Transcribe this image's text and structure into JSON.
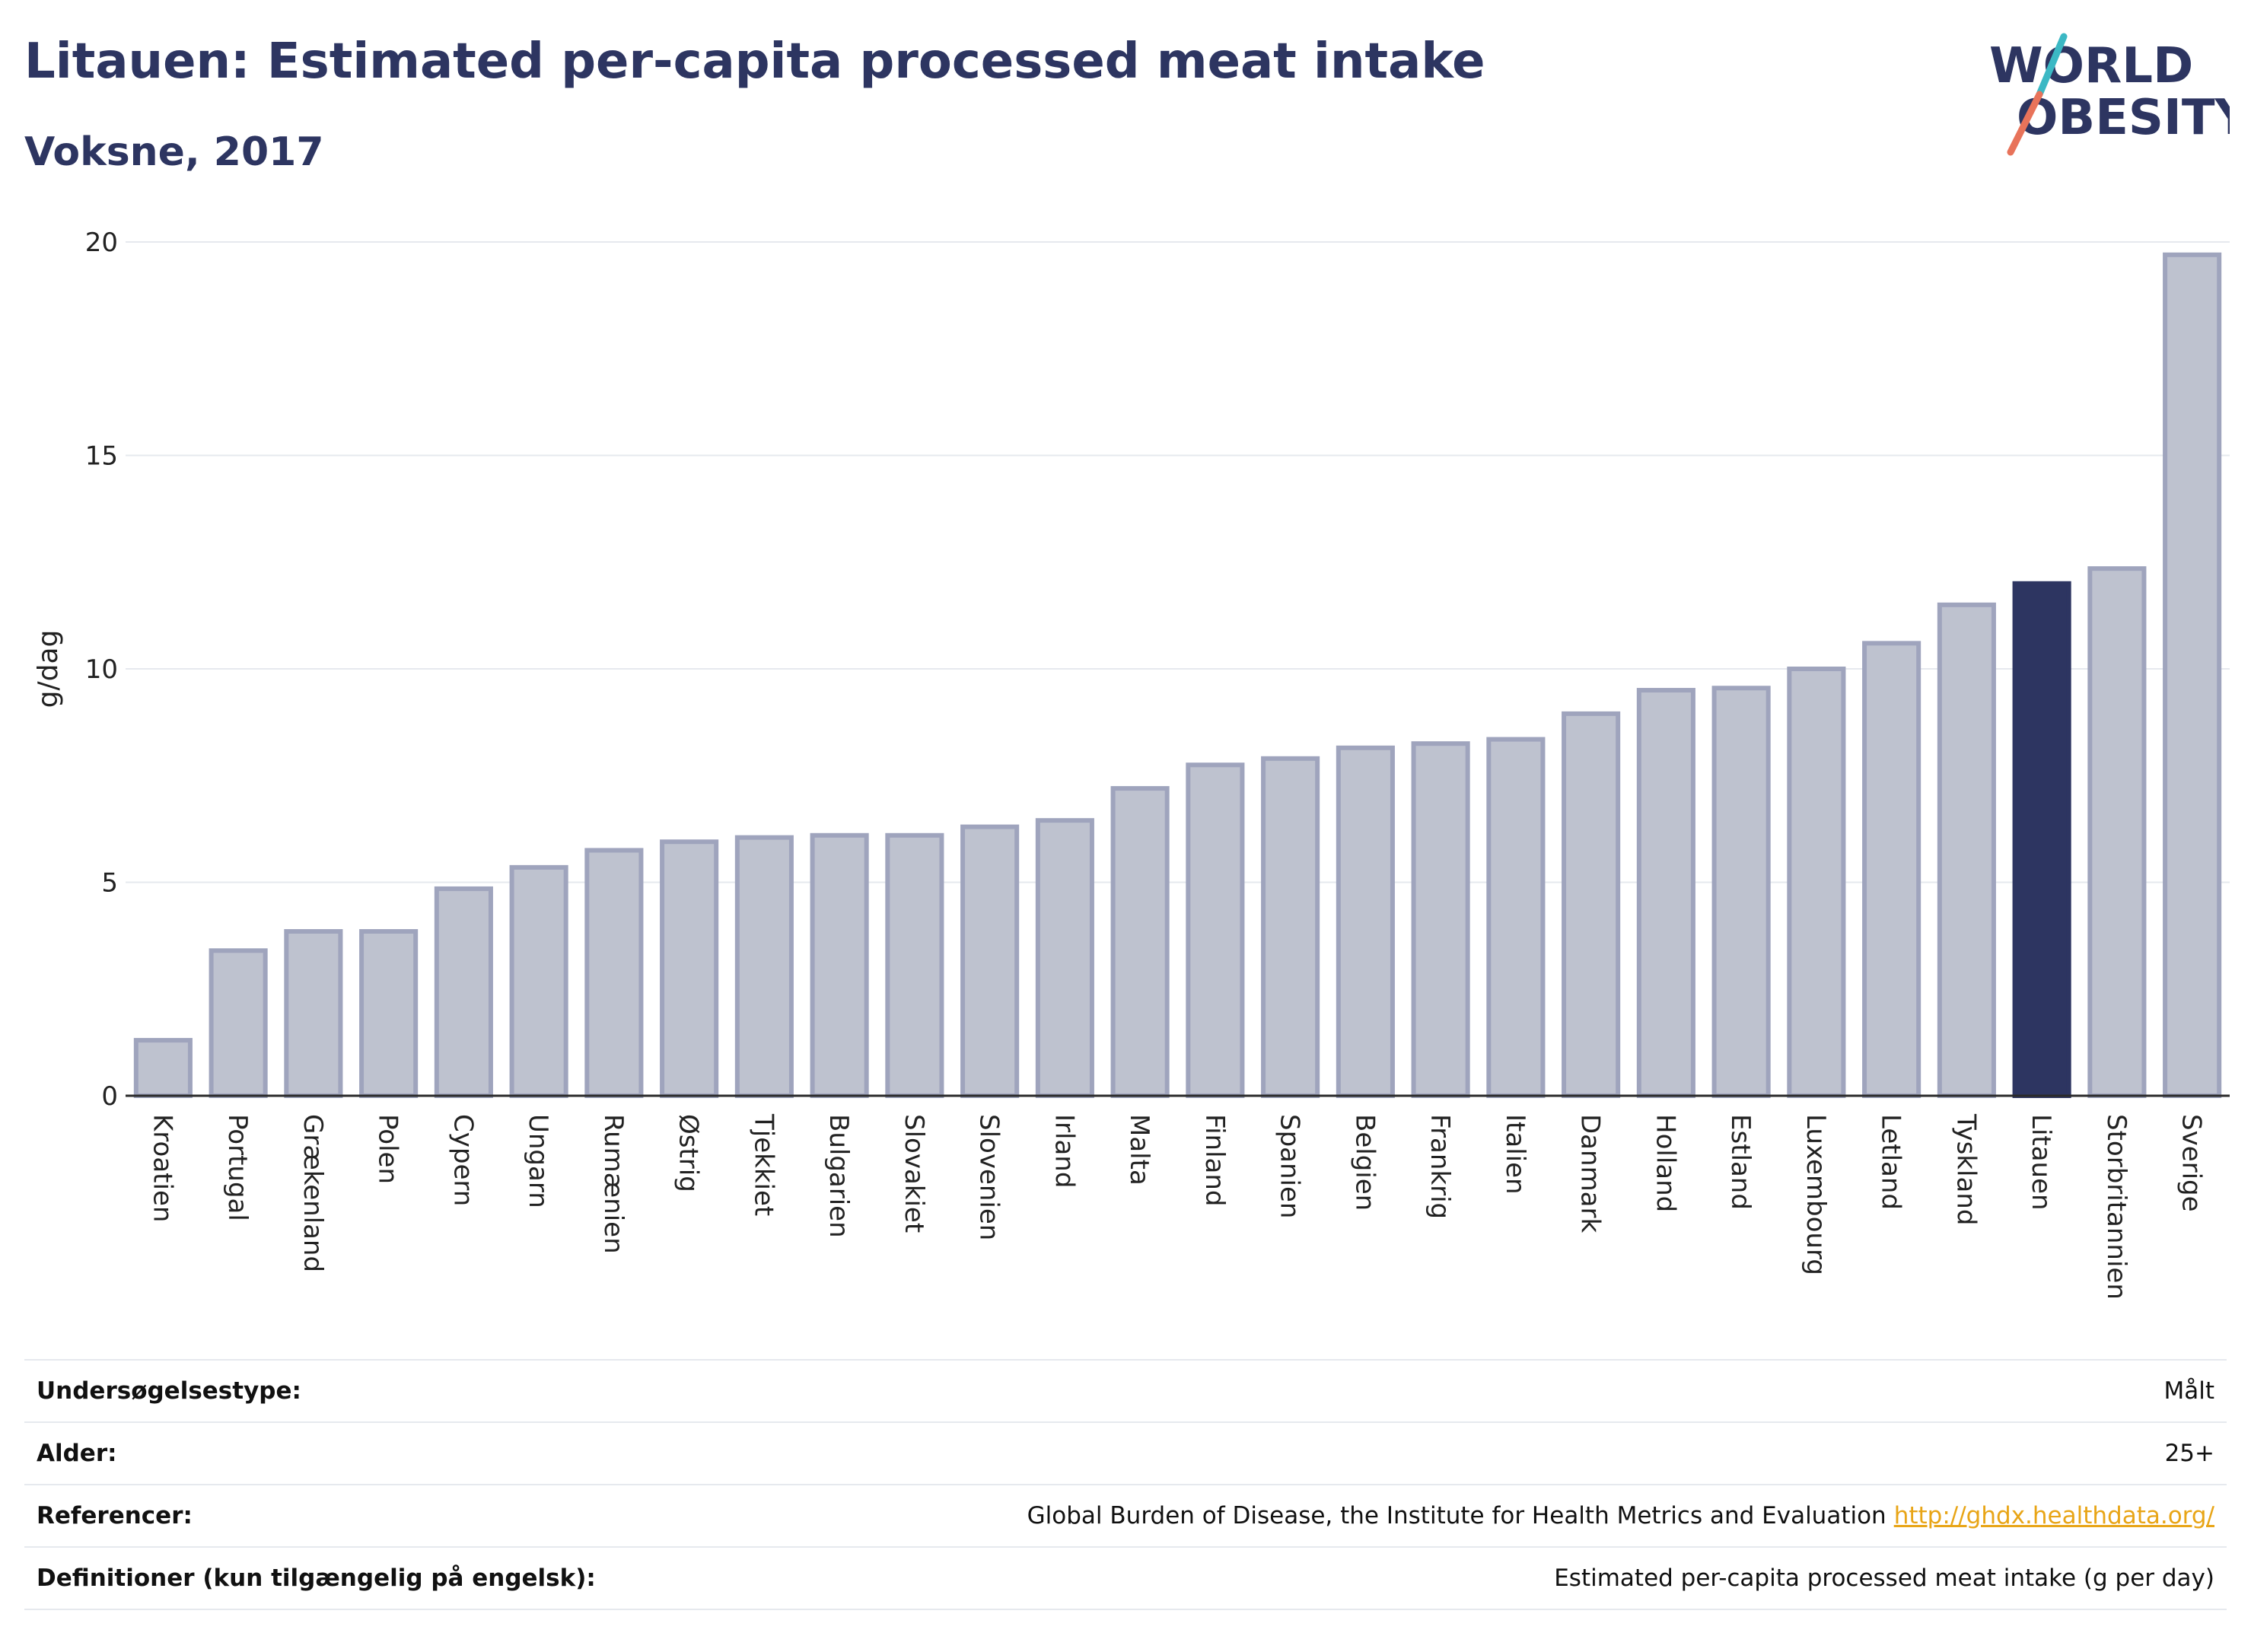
{
  "header": {
    "title": "Litauen: Estimated per-capita processed meat intake",
    "subtitle": "Voksne, 2017"
  },
  "logo": {
    "line1": "WORLD",
    "line2": "OBESITY",
    "colors": {
      "text": "#2d3561",
      "slash_top": "#3bb8c4",
      "slash_bottom": "#e8735a"
    }
  },
  "chart_data": {
    "type": "bar",
    "ylabel": "g/dag",
    "xlabel": "",
    "ylim": [
      0,
      20
    ],
    "yticks": [
      0,
      5,
      10,
      15,
      20
    ],
    "grid": true,
    "highlight": "Litauen",
    "colors": {
      "default_fill": "#bec2cf",
      "default_stroke": "#9fa4bd",
      "highlight_fill": "#2d3561"
    },
    "categories": [
      "Kroatien",
      "Portugal",
      "Grækenland",
      "Polen",
      "Cypern",
      "Ungarn",
      "Rumænien",
      "Østrig",
      "Tjekkiet",
      "Bulgarien",
      "Slovakiet",
      "Slovenien",
      "Irland",
      "Malta",
      "Finland",
      "Spanien",
      "Belgien",
      "Frankrig",
      "Italien",
      "Danmark",
      "Holland",
      "Estland",
      "Luxembourg",
      "Letland",
      "Tyskland",
      "Litauen",
      "Storbritannien",
      "Sverige"
    ],
    "values": [
      1.3,
      3.4,
      3.85,
      3.85,
      4.85,
      5.35,
      5.75,
      5.95,
      6.05,
      6.1,
      6.1,
      6.3,
      6.45,
      7.2,
      7.75,
      7.9,
      8.15,
      8.25,
      8.35,
      8.95,
      9.5,
      9.55,
      10.0,
      10.6,
      11.5,
      12.0,
      12.35,
      19.7
    ]
  },
  "info": [
    {
      "key": "Undersøgelsestype:",
      "value": "Målt"
    },
    {
      "key": "Alder:",
      "value": "25+"
    },
    {
      "key": "Referencer:",
      "value": "Global Burden of Disease, the Institute for Health Metrics and Evaluation",
      "link": "http://ghdx.healthdata.org/"
    },
    {
      "key": "Definitioner (kun tilgængelig på engelsk):",
      "value": "Estimated per-capita processed meat intake (g per day)"
    }
  ]
}
